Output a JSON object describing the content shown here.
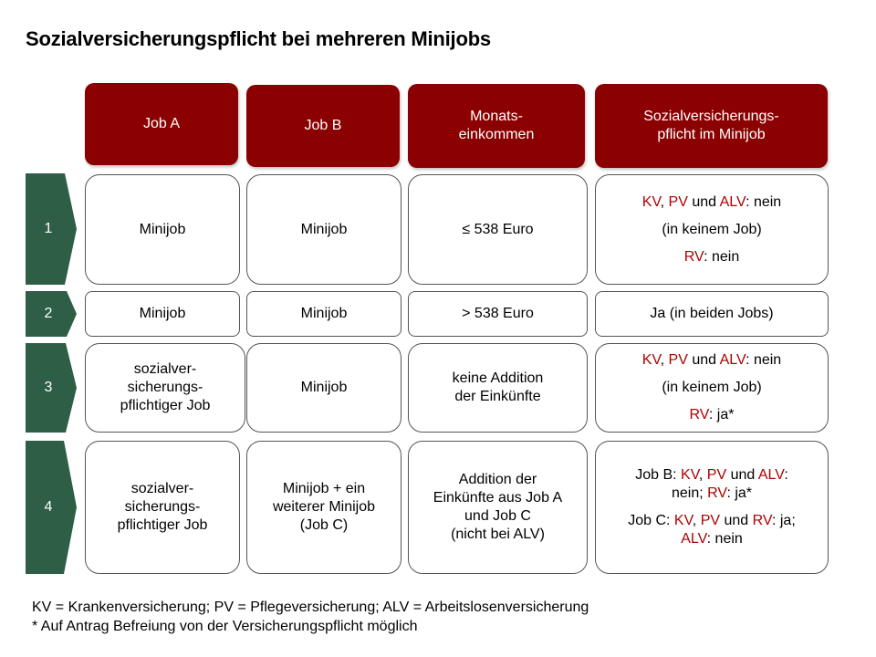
{
  "title": "Sozialversicherungspflicht bei mehreren Minijobs",
  "colors": {
    "header_bg": "#8b0000",
    "row_arrow": "#2e5e46",
    "highlight": "#b00000"
  },
  "headers": {
    "job_a": "Job A",
    "job_b": "Job B",
    "einkommen_1": "Monats-",
    "einkommen_2": "einkommen",
    "pflicht_1": "Sozialversicherungs-",
    "pflicht_2": "pflicht im Minijob"
  },
  "rows": [
    {
      "num": "1",
      "job_a": "Minijob",
      "job_b": "Minijob",
      "einkommen": "≤ 538 Euro",
      "pflicht": {
        "kv": "KV",
        "c1": ", ",
        "pv": "PV",
        "c2": " und ",
        "alv": "ALV",
        "c3": ": nein",
        "line2": "(in keinem Job)",
        "rv": "RV",
        "rv_val": ": nein"
      }
    },
    {
      "num": "2",
      "job_a": "Minijob",
      "job_b": "Minijob",
      "einkommen": "> 538 Euro",
      "pflicht_text": "Ja (in beiden Jobs)"
    },
    {
      "num": "3",
      "job_a_1": "sozialver-",
      "job_a_2": "sicherungs-",
      "job_a_3": "pflichtiger Job",
      "job_b": "Minijob",
      "einkommen_1": "keine Addition",
      "einkommen_2": "der Einkünfte",
      "pflicht": {
        "kv": "KV",
        "c1": ", ",
        "pv": "PV",
        "c2": " und ",
        "alv": "ALV",
        "c3": ": nein",
        "line2": "(in keinem Job)",
        "rv": "RV",
        "rv_val": ": ja*"
      }
    },
    {
      "num": "4",
      "job_a_1": "sozialver-",
      "job_a_2": "sicherungs-",
      "job_a_3": "pflichtiger Job",
      "job_b_1": "Minijob + ein",
      "job_b_2": "weiterer Minijob",
      "job_b_3": "(Job C)",
      "einkommen_1": "Addition der",
      "einkommen_2": "Einkünfte aus Job A",
      "einkommen_3": "und Job C",
      "einkommen_4": "(nicht bei ALV)",
      "pflicht": {
        "b_prefix": "Job B: ",
        "b_kv": "KV",
        "b_c1": ", ",
        "b_pv": "PV",
        "b_c2": " und ",
        "b_alv": "ALV",
        "b_c3": ":",
        "b_line2_a": "nein; ",
        "b_rv": "RV",
        "b_line2_b": ": ja*",
        "c_prefix": "Job C: ",
        "c_kv": "KV",
        "c_c1": ", ",
        "c_pv": "PV",
        "c_c2": " und ",
        "c_rv": "RV",
        "c_c3": ": ja;",
        "c_alv": "ALV",
        "c_line2": ": nein"
      }
    }
  ],
  "footer": {
    "line1": "KV = Krankenversicherung; PV = Pflegeversicherung; ALV = Arbeitslosenversicherung",
    "line2": "* Auf Antrag Befreiung von der Versicherungspflicht möglich"
  }
}
